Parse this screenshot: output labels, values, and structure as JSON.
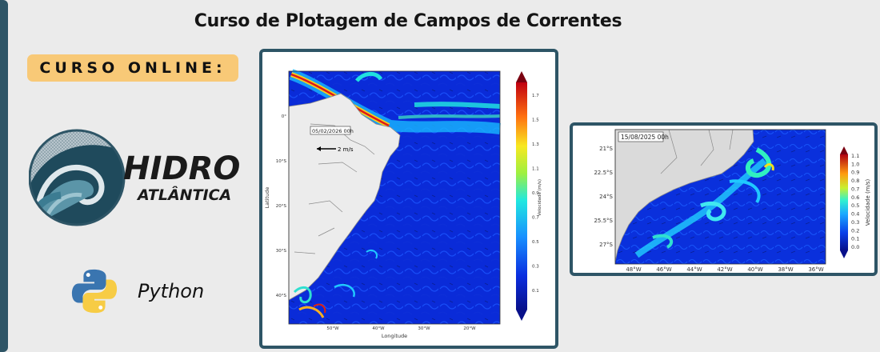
{
  "header": {
    "title": "Curso de Plotagem de Campos de Correntes"
  },
  "badge": {
    "label": "CURSO ONLINE:"
  },
  "logo": {
    "line1": "HIDRO",
    "line2": "ATLÂNTICA"
  },
  "python": {
    "label": "Python",
    "icon": "python-logo-icon"
  },
  "colors": {
    "accent": "#2e5566",
    "badge_bg": "#f8c977",
    "background": "#ebebeb"
  },
  "map_main": {
    "timestamp": "05/02/2026 00h",
    "vector_label": "2 m/s",
    "xlabel": "Longitude",
    "ylabel": "Latitude",
    "lon_ticks": [
      "50°W",
      "40°W",
      "30°W",
      "20°W"
    ],
    "lat_ticks": [
      "0°",
      "10°S",
      "20°S",
      "30°S",
      "40°S"
    ],
    "colorbar_label": "Velocidade (m/s)",
    "colorbar_ticks": [
      "1.7",
      "1.5",
      "1.3",
      "1.1",
      "0.9",
      "0.7",
      "0.5",
      "0.3",
      "0.1"
    ]
  },
  "map_side": {
    "timestamp": "15/08/2025 00h",
    "lon_ticks": [
      "48°W",
      "46°W",
      "44°W",
      "42°W",
      "40°W",
      "38°W",
      "36°W"
    ],
    "lat_ticks": [
      "21°S",
      "22.5°S",
      "24°S",
      "25.5°S",
      "27°S"
    ],
    "colorbar_label": "Velocidade (m/s)",
    "colorbar_ticks": [
      "1.1",
      "1.0",
      "0.9",
      "0.8",
      "0.7",
      "0.6",
      "0.5",
      "0.4",
      "0.3",
      "0.2",
      "0.1",
      "0.0"
    ]
  }
}
